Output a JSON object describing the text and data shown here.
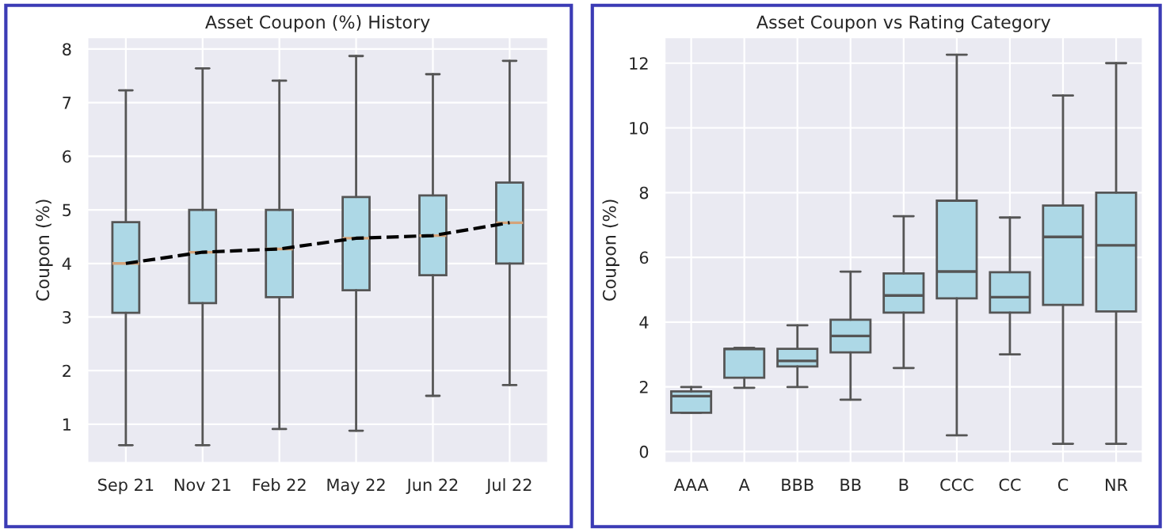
{
  "chart_data": [
    {
      "type": "box",
      "title": "Asset Coupon (%) History",
      "ylabel": "Coupon (%)",
      "categories": [
        "Sep 21",
        "Nov 21",
        "Feb 22",
        "May 22",
        "Jun 22",
        "Jul 22"
      ],
      "ylim": [
        0.28,
        8.22
      ],
      "yticks": [
        1,
        2,
        3,
        4,
        5,
        6,
        7,
        8
      ],
      "grid": true,
      "color": "#add8e6",
      "boxes": [
        {
          "low": 0.61,
          "q1": 3.08,
          "median": 4.0,
          "q3": 4.77,
          "high": 7.23
        },
        {
          "low": 0.61,
          "q1": 3.26,
          "median": 4.21,
          "q3": 5.0,
          "high": 7.64
        },
        {
          "low": 0.91,
          "q1": 3.37,
          "median": 4.27,
          "q3": 5.0,
          "high": 7.41
        },
        {
          "low": 0.88,
          "q1": 3.5,
          "median": 4.47,
          "q3": 5.24,
          "high": 7.87
        },
        {
          "low": 1.53,
          "q1": 3.78,
          "median": 4.52,
          "q3": 5.27,
          "high": 7.53
        },
        {
          "low": 1.73,
          "q1": 4.0,
          "median": 4.76,
          "q3": 5.51,
          "high": 7.78
        }
      ],
      "series": [
        {
          "type": "line",
          "color": "#000000",
          "line_style": "dashed",
          "values": [
            4.0,
            4.21,
            4.27,
            4.47,
            4.52,
            4.76
          ]
        }
      ]
    },
    {
      "type": "box",
      "title": "Asset Coupon vs Rating Category",
      "ylabel": "Coupon (%)",
      "categories": [
        "AAA",
        "A",
        "BBB",
        "BB",
        "B",
        "CCC",
        "CC",
        "C",
        "NR"
      ],
      "ylim": [
        -0.35,
        12.8
      ],
      "yticks": [
        0,
        2,
        4,
        6,
        8,
        10,
        12
      ],
      "grid": true,
      "color": "#add8e6",
      "boxes": [
        {
          "low": 1.2,
          "q1": 1.2,
          "median": 1.71,
          "q3": 1.86,
          "high": 1.99
        },
        {
          "low": 1.97,
          "q1": 2.28,
          "median": 3.17,
          "q3": 3.17,
          "high": 3.2
        },
        {
          "low": 1.99,
          "q1": 2.63,
          "median": 2.8,
          "q3": 3.17,
          "high": 3.9
        },
        {
          "low": 1.6,
          "q1": 3.06,
          "median": 3.57,
          "q3": 4.07,
          "high": 5.56
        },
        {
          "low": 2.58,
          "q1": 4.29,
          "median": 4.82,
          "q3": 5.5,
          "high": 7.27
        },
        {
          "low": 0.5,
          "q1": 4.73,
          "median": 5.56,
          "q3": 7.75,
          "high": 12.26
        },
        {
          "low": 3.0,
          "q1": 4.29,
          "median": 4.77,
          "q3": 5.54,
          "high": 7.23
        },
        {
          "low": 0.24,
          "q1": 4.53,
          "median": 6.63,
          "q3": 7.6,
          "high": 11.0
        },
        {
          "low": 0.24,
          "q1": 4.33,
          "median": 6.37,
          "q3": 8.0,
          "high": 12.0
        }
      ]
    }
  ]
}
